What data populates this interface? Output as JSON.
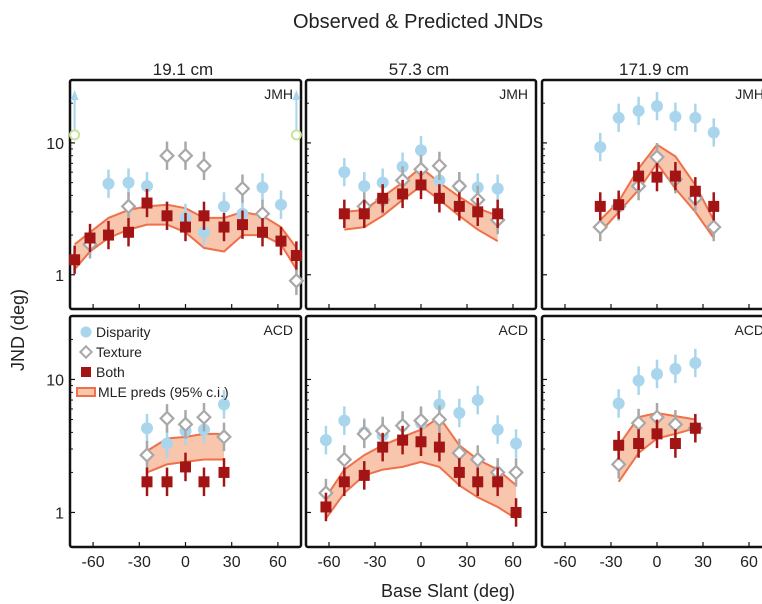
{
  "figure": {
    "title": "Observed & Predicted JNDs",
    "xlabel": "Base Slant (deg)",
    "ylabel": "JND (deg)",
    "columns": [
      "19.1 cm",
      "57.3 cm",
      "171.9 cm"
    ],
    "rows": [
      "JMH",
      "ACD"
    ],
    "xticks": [
      -60,
      -30,
      0,
      30,
      60
    ],
    "yticks": [
      1,
      10
    ]
  },
  "legend": {
    "disparity": "Disparity",
    "texture": "Texture",
    "both": "Both",
    "mle": "MLE preds (95% c.i.)"
  },
  "colors": {
    "disparity": "#a9d6ec",
    "texture": "#a8a8a8",
    "both": "#a31515",
    "band_fill": "#f8c6ad",
    "band_edge": "#ef7049",
    "offscale_arrow": "#a9d6ec",
    "offscale_ring": "#c9e39b"
  },
  "chart_data": [
    {
      "type": "scatter",
      "subject": "JMH",
      "distance": "19.1 cm",
      "yscale": "log",
      "xlim": [
        -75,
        75
      ],
      "ylim": [
        0.55,
        30
      ],
      "series": [
        {
          "name": "Disparity",
          "x": [
            -50,
            -37,
            -25,
            -12,
            0,
            12,
            25,
            37,
            50,
            62
          ],
          "y": [
            4.9,
            5.0,
            4.7,
            2.8,
            2.7,
            2.1,
            3.3,
            2.9,
            4.6,
            3.4
          ]
        },
        {
          "name": "Texture",
          "x": [
            -62,
            -37,
            -12,
            0,
            12,
            37,
            50,
            72
          ],
          "y": [
            1.7,
            3.3,
            8.0,
            8.0,
            6.7,
            4.5,
            2.9,
            0.9
          ]
        },
        {
          "name": "Both",
          "x": [
            -72,
            -62,
            -50,
            -37,
            -25,
            -12,
            0,
            12,
            25,
            37,
            50,
            62,
            72
          ],
          "y": [
            1.3,
            1.9,
            2.0,
            2.1,
            3.5,
            2.8,
            2.3,
            2.8,
            2.3,
            2.4,
            2.1,
            1.8,
            1.4
          ]
        },
        {
          "name": "MLE preds (95% c.i.)",
          "x": [
            -72,
            -62,
            -50,
            -37,
            -25,
            -12,
            0,
            12,
            25,
            37,
            50,
            62,
            72
          ],
          "lower": [
            1.1,
            1.5,
            1.9,
            2.2,
            2.4,
            2.4,
            2.1,
            1.6,
            1.5,
            2.0,
            2.0,
            1.7,
            1.1
          ],
          "upper": [
            1.7,
            2.1,
            2.7,
            3.1,
            3.3,
            3.4,
            3.2,
            2.7,
            2.7,
            3.0,
            2.8,
            2.3,
            1.6
          ]
        }
      ],
      "offscale_points": [
        {
          "x": -72,
          "y": 11.5
        },
        {
          "x": 72,
          "y": 11.5
        }
      ]
    },
    {
      "type": "scatter",
      "subject": "JMH",
      "distance": "57.3 cm",
      "yscale": "log",
      "xlim": [
        -75,
        75
      ],
      "ylim": [
        0.55,
        30
      ],
      "series": [
        {
          "name": "Disparity",
          "x": [
            -50,
            -37,
            -25,
            -12,
            0,
            12,
            25,
            37,
            50
          ],
          "y": [
            6.0,
            4.7,
            5.0,
            6.6,
            8.8,
            5.2,
            4.7,
            4.6,
            4.5
          ]
        },
        {
          "name": "Texture",
          "x": [
            -37,
            -25,
            -12,
            0,
            12,
            25,
            37,
            50
          ],
          "y": [
            3.3,
            3.7,
            5.2,
            6.3,
            6.7,
            4.7,
            3.7,
            2.6
          ]
        },
        {
          "name": "Both",
          "x": [
            -50,
            -37,
            -25,
            -12,
            0,
            12,
            25,
            37,
            50
          ],
          "y": [
            2.9,
            2.9,
            3.8,
            4.1,
            4.8,
            3.8,
            3.3,
            3.0,
            2.9
          ]
        },
        {
          "name": "MLE preds (95% c.i.)",
          "x": [
            -50,
            -37,
            -25,
            -12,
            0,
            12,
            25,
            37,
            50
          ],
          "lower": [
            2.2,
            2.3,
            2.8,
            3.7,
            4.7,
            3.7,
            2.8,
            2.2,
            1.8
          ],
          "upper": [
            3.0,
            3.1,
            3.9,
            5.0,
            6.5,
            5.0,
            3.9,
            3.2,
            2.8
          ]
        }
      ]
    },
    {
      "type": "scatter",
      "subject": "JMH",
      "distance": "171.9 cm",
      "yscale": "log",
      "xlim": [
        -75,
        75
      ],
      "ylim": [
        0.55,
        30
      ],
      "series": [
        {
          "name": "Disparity",
          "x": [
            -37,
            -25,
            -12,
            0,
            12,
            25,
            37
          ],
          "y": [
            9.3,
            15.5,
            17.5,
            19.0,
            15.8,
            15.5,
            12.0
          ]
        },
        {
          "name": "Texture",
          "x": [
            -37,
            -25,
            -12,
            0,
            12,
            25,
            37
          ],
          "y": [
            2.3,
            3.3,
            4.7,
            7.8,
            5.3,
            3.8,
            2.3
          ]
        },
        {
          "name": "Both",
          "x": [
            -37,
            -25,
            -12,
            0,
            12,
            25,
            37
          ],
          "y": [
            3.3,
            3.4,
            5.6,
            5.5,
            5.6,
            4.3,
            3.3
          ]
        },
        {
          "name": "MLE preds (95% c.i.)",
          "x": [
            -37,
            -25,
            -12,
            0,
            12,
            25,
            37
          ],
          "lower": [
            2.1,
            3.0,
            4.4,
            7.0,
            4.5,
            3.0,
            1.9
          ],
          "upper": [
            2.6,
            3.6,
            6.4,
            9.7,
            7.9,
            4.8,
            2.6
          ]
        }
      ]
    },
    {
      "type": "scatter",
      "subject": "ACD",
      "distance": "19.1 cm",
      "yscale": "log",
      "xlim": [
        -75,
        75
      ],
      "ylim": [
        0.55,
        30
      ],
      "series": [
        {
          "name": "Disparity",
          "x": [
            -25,
            -12,
            0,
            12,
            25
          ],
          "y": [
            4.3,
            3.3,
            4.1,
            4.2,
            6.5
          ]
        },
        {
          "name": "Texture",
          "x": [
            -25,
            -12,
            0,
            12,
            25
          ],
          "y": [
            2.7,
            5.1,
            4.6,
            5.2,
            3.7
          ]
        },
        {
          "name": "Both",
          "x": [
            -25,
            -12,
            0,
            12,
            25
          ],
          "y": [
            1.7,
            1.7,
            2.2,
            1.7,
            2.0
          ]
        },
        {
          "name": "MLE preds (95% c.i.)",
          "x": [
            -25,
            -12,
            0,
            12,
            25
          ],
          "lower": [
            2.0,
            2.3,
            2.4,
            2.5,
            2.5
          ],
          "upper": [
            2.9,
            3.6,
            3.7,
            3.9,
            3.9
          ]
        }
      ]
    },
    {
      "type": "scatter",
      "subject": "ACD",
      "distance": "57.3 cm",
      "yscale": "log",
      "xlim": [
        -75,
        75
      ],
      "ylim": [
        0.55,
        30
      ],
      "series": [
        {
          "name": "Disparity",
          "x": [
            -62,
            -50,
            -37,
            -25,
            -12,
            0,
            12,
            25,
            37,
            50,
            62
          ],
          "y": [
            3.5,
            4.9,
            4.0,
            3.8,
            4.5,
            4.7,
            6.5,
            5.6,
            7.0,
            4.2,
            3.3
          ]
        },
        {
          "name": "Texture",
          "x": [
            -62,
            -50,
            -37,
            -25,
            -12,
            0,
            12,
            25,
            37,
            50,
            62
          ],
          "y": [
            1.4,
            2.5,
            3.9,
            4.1,
            4.5,
            4.9,
            5.0,
            2.8,
            2.5,
            2.0,
            2.0
          ]
        },
        {
          "name": "Both",
          "x": [
            -62,
            -50,
            -37,
            -25,
            -12,
            0,
            12,
            25,
            37,
            50,
            62
          ],
          "y": [
            1.1,
            1.7,
            1.9,
            3.1,
            3.5,
            3.4,
            3.1,
            2.0,
            1.7,
            1.7,
            1.0
          ]
        },
        {
          "name": "MLE preds (95% c.i.)",
          "x": [
            -62,
            -50,
            -37,
            -25,
            -12,
            0,
            12,
            25,
            37,
            50,
            62
          ],
          "lower": [
            0.9,
            1.4,
            1.9,
            2.1,
            2.2,
            2.4,
            2.2,
            1.6,
            1.3,
            1.1,
            0.9
          ],
          "upper": [
            1.3,
            2.1,
            2.7,
            3.2,
            3.7,
            4.2,
            5.2,
            3.2,
            2.5,
            2.1,
            1.6
          ]
        }
      ]
    },
    {
      "type": "scatter",
      "subject": "ACD",
      "distance": "171.9 cm",
      "yscale": "log",
      "xlim": [
        -75,
        75
      ],
      "ylim": [
        0.55,
        30
      ],
      "series": [
        {
          "name": "Disparity",
          "x": [
            -25,
            -12,
            0,
            12,
            25
          ],
          "y": [
            6.6,
            9.8,
            11.0,
            12.0,
            13.3
          ]
        },
        {
          "name": "Texture",
          "x": [
            -25,
            -12,
            0,
            12,
            25
          ],
          "y": [
            2.3,
            4.7,
            5.2,
            4.6,
            4.3
          ]
        },
        {
          "name": "Both",
          "x": [
            -25,
            -12,
            0,
            12,
            25
          ],
          "y": [
            3.2,
            3.3,
            3.9,
            3.3,
            4.3
          ]
        },
        {
          "name": "MLE preds (95% c.i.)",
          "x": [
            -25,
            -12,
            0,
            12,
            25
          ],
          "lower": [
            1.7,
            2.8,
            3.6,
            3.9,
            4.3
          ],
          "upper": [
            3.2,
            5.2,
            5.6,
            5.3,
            5.0
          ]
        }
      ]
    }
  ]
}
